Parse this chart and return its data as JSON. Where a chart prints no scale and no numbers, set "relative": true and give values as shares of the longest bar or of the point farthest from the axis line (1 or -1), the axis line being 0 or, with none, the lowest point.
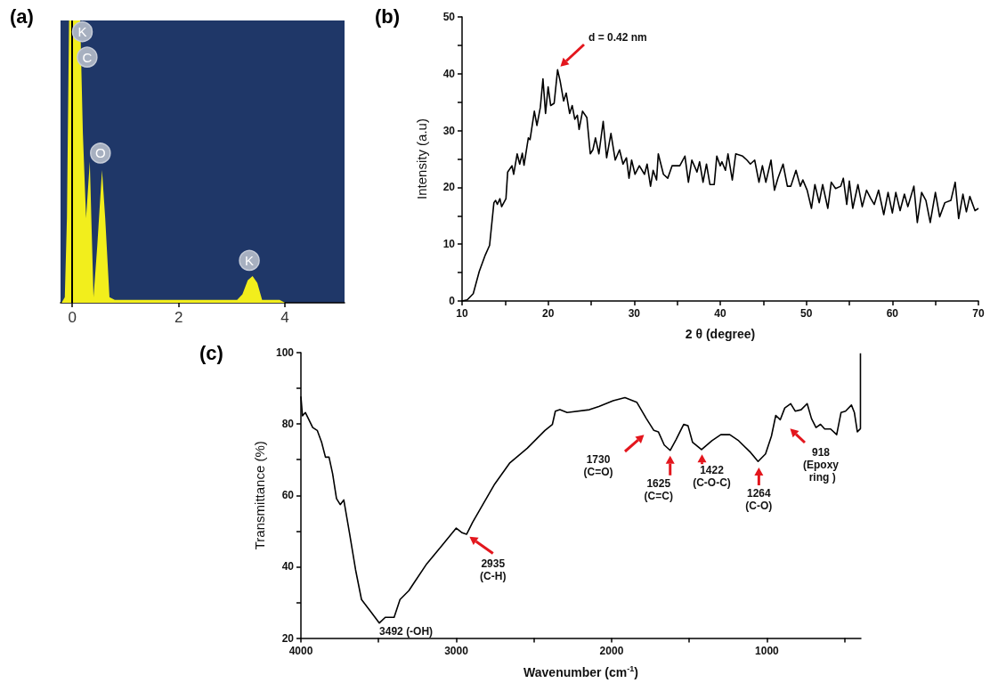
{
  "chart_data": [
    {
      "type": "area",
      "title": "(a)",
      "relative": true,
      "xlim": [
        -0.22,
        5.12
      ],
      "xticks": [
        0,
        2,
        4
      ],
      "series": [
        {
          "color": "#f2ee1c",
          "x": [
            -0.2,
            -0.14,
            -0.1,
            -0.06,
            0.0,
            0.15,
            0.2,
            0.26,
            0.33,
            0.4,
            0.47,
            0.56,
            0.62,
            0.7,
            0.8,
            3.1,
            3.2,
            3.3,
            3.39,
            3.48,
            3.57,
            3.9,
            4.0,
            5.12
          ],
          "values": [
            0,
            0.02,
            0.3,
            1,
            1,
            1,
            0.6,
            0.3,
            0.5,
            0.02,
            0.2,
            0.47,
            0.3,
            0.02,
            0.01,
            0.01,
            0.03,
            0.08,
            0.095,
            0.07,
            0.01,
            0.01,
            0,
            0
          ]
        }
      ],
      "ref_lines": [
        {
          "axis": "x",
          "value": 0,
          "color": "#000000"
        }
      ],
      "annotations": [
        {
          "text": "K",
          "x": 0.19,
          "y": 0.96
        },
        {
          "text": "C",
          "x": 0.28,
          "y": 0.87
        },
        {
          "text": "O",
          "x": 0.53,
          "y": 0.53
        },
        {
          "text": "K",
          "x": 3.33,
          "y": 0.15
        }
      ]
    },
    {
      "type": "line",
      "title": "(b)",
      "xlabel": "2 θ (degree)",
      "ylabel": "Intensity (a.u)",
      "xlim": [
        10,
        70
      ],
      "ylim": [
        0,
        50
      ],
      "xticks": [
        10,
        {
          "value": 15,
          "label": null
        },
        20,
        {
          "value": 25,
          "label": null
        },
        30,
        {
          "value": 35,
          "label": null
        },
        40,
        {
          "value": 45,
          "label": null
        },
        50,
        {
          "value": 55,
          "label": null
        },
        60,
        {
          "value": 65,
          "label": null
        },
        70
      ],
      "yticks": [
        0,
        {
          "value": 5,
          "label": null
        },
        10,
        {
          "value": 15,
          "label": null
        },
        20,
        {
          "value": 25,
          "label": null
        },
        30,
        {
          "value": 35,
          "label": null
        },
        40,
        {
          "value": 45,
          "label": null
        },
        50
      ],
      "series": [
        {
          "color": "#000000",
          "x": [
            10,
            10.6,
            11.3,
            12.0,
            12.7,
            13.2,
            13.7,
            13.9,
            14.1,
            14.4,
            14.6,
            15.1,
            15.3,
            15.8,
            16.0,
            16.4,
            16.7,
            17.0,
            17.2,
            17.7,
            17.9,
            18.4,
            18.7,
            19.1,
            19.4,
            19.7,
            20.0,
            20.3,
            20.7,
            21.1,
            21.4,
            21.8,
            22.1,
            22.5,
            22.8,
            23.1,
            23.4,
            23.6,
            24.0,
            24.5,
            24.9,
            25.2,
            25.5,
            25.9,
            26.4,
            26.8,
            27.3,
            27.8,
            28.3,
            28.7,
            29.1,
            29.4,
            29.7,
            30.1,
            30.6,
            31.2,
            31.5,
            31.9,
            32.2,
            32.6,
            32.8,
            33.4,
            33.9,
            34.4,
            35.3,
            35.9,
            36.3,
            36.7,
            37.3,
            37.6,
            38.0,
            38.4,
            38.8,
            39.3,
            39.6,
            40.0,
            40.2,
            40.6,
            40.9,
            41.4,
            41.8,
            42.6,
            43.1,
            43.5,
            44.0,
            44.5,
            44.9,
            45.3,
            45.9,
            46.3,
            46.7,
            47.3,
            47.8,
            48.2,
            48.8,
            49.3,
            49.6,
            50.1,
            50.6,
            51.0,
            51.5,
            51.9,
            52.5,
            52.9,
            53.4,
            54.0,
            54.3,
            54.7,
            55.0,
            55.4,
            56.0,
            56.5,
            57.0,
            57.5,
            57.9,
            58.4,
            59.0,
            59.5,
            60.0,
            60.4,
            60.9,
            61.4,
            61.8,
            62.5,
            62.9,
            63.4,
            63.9,
            64.4,
            65.0,
            65.5,
            66.1,
            66.8,
            67.3,
            67.7,
            68.2,
            68.6,
            69.0,
            69.6,
            70.0
          ],
          "values": [
            0,
            0.2,
            1.3,
            5.2,
            8.1,
            9.8,
            17.3,
            17.7,
            17.0,
            18.0,
            16.6,
            18.0,
            22.7,
            23.8,
            22.3,
            25.9,
            24.1,
            26.0,
            23.9,
            28.7,
            28.4,
            33.4,
            30.9,
            34.1,
            39.1,
            33.0,
            37.7,
            34.4,
            34.8,
            40.7,
            38.7,
            35.2,
            36.6,
            33.0,
            34.4,
            32.0,
            32.7,
            30.2,
            33.4,
            32.3,
            25.9,
            26.6,
            28.7,
            25.9,
            31.6,
            25.2,
            29.5,
            24.8,
            26.6,
            24.1,
            25.2,
            21.6,
            24.8,
            22.3,
            23.8,
            22.3,
            24.1,
            20.2,
            23.0,
            21.3,
            25.9,
            22.3,
            21.6,
            23.8,
            23.8,
            25.5,
            20.9,
            24.8,
            22.7,
            24.5,
            20.9,
            24.1,
            20.5,
            20.5,
            25.5,
            23.8,
            24.5,
            23.0,
            25.9,
            21.3,
            25.9,
            25.5,
            24.8,
            24.1,
            24.8,
            20.9,
            23.8,
            20.9,
            24.8,
            19.5,
            21.6,
            24.1,
            20.2,
            20.2,
            23.0,
            20.2,
            21.3,
            19.5,
            16.3,
            20.5,
            17.3,
            20.5,
            16.3,
            20.9,
            19.8,
            20.2,
            21.6,
            17.0,
            21.1,
            16.3,
            20.5,
            16.6,
            19.5,
            18.0,
            17.0,
            19.5,
            15.2,
            19.1,
            15.5,
            19.1,
            15.9,
            18.8,
            16.6,
            20.2,
            13.8,
            19.1,
            17.7,
            13.8,
            19.1,
            14.8,
            17.3,
            17.7,
            20.9,
            14.5,
            18.8,
            15.7,
            18.4,
            15.9,
            16.3
          ]
        }
      ],
      "annotations": [
        "d = 0.42 nm"
      ]
    },
    {
      "type": "line",
      "title": "(c)",
      "xlabel": "Wavenumber (cm$^{-1}$)",
      "ylabel": "Transmittance (%)",
      "xlim": [
        4000,
        395
      ],
      "ylim": [
        20,
        100
      ],
      "xticks": [
        4000,
        {
          "value": 3500,
          "label": null
        },
        3000,
        {
          "value": 2500,
          "label": null
        },
        2000,
        {
          "value": 1500,
          "label": null
        },
        1000,
        {
          "value": 500,
          "label": null
        }
      ],
      "yticks": [
        20,
        {
          "value": 30,
          "label": null
        },
        40,
        {
          "value": 50,
          "label": null
        },
        60,
        {
          "value": 70,
          "label": null
        },
        80,
        {
          "value": 90,
          "label": null
        },
        100
      ],
      "series": [
        {
          "color": "#000000",
          "x": [
            4000,
            3990,
            3971,
            3952,
            3924,
            3895,
            3867,
            3842,
            3819,
            3796,
            3771,
            3747,
            3724,
            3686,
            3648,
            3610,
            3552,
            3495,
            3457,
            3400,
            3362,
            3305,
            3267,
            3190,
            3095,
            3000,
            2962,
            2933,
            2895,
            2829,
            2752,
            2657,
            2543,
            2429,
            2381,
            2362,
            2333,
            2286,
            2143,
            2082,
            1990,
            1914,
            1838,
            1776,
            1728,
            1699,
            1661,
            1623,
            1584,
            1536,
            1508,
            1479,
            1421,
            1354,
            1297,
            1239,
            1182,
            1105,
            1057,
            1009,
            971,
            943,
            914,
            885,
            847,
            818,
            780,
            741,
            713,
            684,
            655,
            628,
            590,
            551,
            523,
            494,
            456,
            437,
            418,
            398,
            398
          ],
          "values": [
            87.7,
            82.3,
            83.2,
            81.5,
            79.0,
            78.2,
            74.9,
            70.7,
            70.7,
            66.1,
            59.1,
            57.4,
            58.7,
            49.1,
            39.1,
            30.8,
            27.5,
            24.2,
            25.8,
            25.8,
            30.8,
            33.3,
            35.8,
            40.8,
            45.8,
            50.8,
            49.5,
            49.1,
            52.4,
            57.4,
            63.2,
            69.0,
            73.2,
            78.2,
            79.9,
            83.6,
            84.0,
            83.2,
            84.0,
            84.9,
            86.5,
            87.4,
            86.1,
            81.5,
            78.2,
            77.8,
            74.1,
            72.6,
            75.7,
            79.9,
            79.5,
            74.9,
            72.8,
            75.3,
            77.0,
            77.0,
            75.3,
            72.0,
            69.5,
            71.6,
            76.6,
            82.4,
            81.2,
            84.5,
            85.7,
            83.6,
            84.0,
            85.7,
            81.5,
            79.0,
            79.9,
            78.6,
            78.6,
            77.0,
            83.2,
            83.6,
            85.3,
            83.2,
            77.8,
            78.7,
            99.8
          ]
        }
      ],
      "annotations": [
        {
          "text": "3492 (-OH)",
          "x": 3495,
          "y": 24.2
        },
        {
          "text": "2935\n(C-H)",
          "x": 2924,
          "y": 48.7
        },
        "1730\n(C=O)",
        {
          "text": "1625\n(C=C)",
          "x": 1623,
          "y": 71.6
        },
        {
          "text": "1422\n(C-O-C)",
          "x": 1418,
          "y": 72.0
        },
        {
          "text": "1264\n(C-O)",
          "x": 1052,
          "y": 68.3
        },
        "918\n(Epoxy\n ring )"
      ]
    }
  ]
}
